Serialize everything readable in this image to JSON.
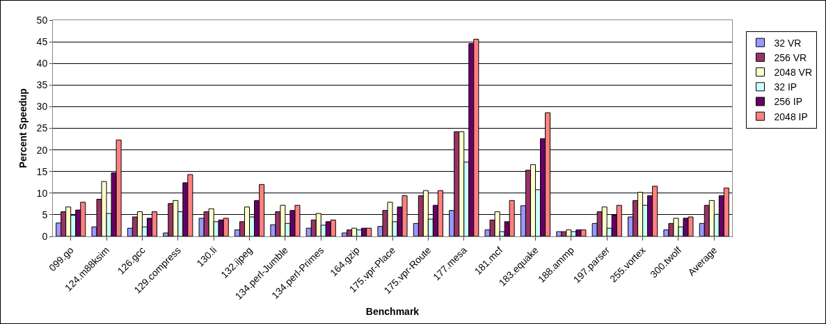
{
  "chart_data": {
    "type": "bar",
    "xlabel": "Benchmark",
    "ylabel": "Percent Speedup",
    "categories": [
      "099.go",
      "124.m88ksim",
      "126.gcc",
      "129.compress",
      "130.li",
      "132.ijpeg",
      "134.perl-Jumble",
      "134.perl-Primes",
      "164.gzip",
      "175.vpr-Place",
      "175.vpr-Route",
      "177.mesa",
      "181.mcf",
      "183.equake",
      "188.ammp",
      "197.parser",
      "255.vortex",
      "300.twolf",
      "Average"
    ],
    "series": [
      {
        "name": "32 VR",
        "color": "#9999ff",
        "values": [
          3.1,
          2.2,
          1.9,
          0.8,
          4.2,
          1.5,
          2.7,
          1.9,
          0.8,
          2.3,
          3,
          6,
          1.5,
          7.1,
          1.1,
          3,
          4.5,
          1.5,
          3
        ]
      },
      {
        "name": "256 VR",
        "color": "#993366",
        "values": [
          5.7,
          8.6,
          4.5,
          7.6,
          5.7,
          3.4,
          5.7,
          3.8,
          1.5,
          6,
          9.4,
          24.2,
          3.8,
          15.3,
          1.1,
          5.7,
          8.3,
          3,
          7.2
        ]
      },
      {
        "name": "2048 VR",
        "color": "#ffffcc",
        "values": [
          6.8,
          12.7,
          5.7,
          8.3,
          6.4,
          6.8,
          7.2,
          5.3,
          1.9,
          7.9,
          10.6,
          24.2,
          5.7,
          16.6,
          1.5,
          6.8,
          10.2,
          4.2,
          8.3
        ]
      },
      {
        "name": "32 IP",
        "color": "#ccffff",
        "values": [
          4.9,
          5.3,
          2.2,
          5.7,
          3.4,
          4.5,
          3,
          2.6,
          1.5,
          3.4,
          4,
          17.2,
          1.1,
          10.8,
          1.1,
          1.9,
          7.2,
          2.2,
          5.1
        ]
      },
      {
        "name": "256 IP",
        "color": "#660066",
        "values": [
          6.1,
          14.7,
          4.2,
          12.4,
          3.8,
          8.3,
          6,
          3.4,
          1.9,
          6.8,
          7.2,
          44.6,
          3.4,
          22.6,
          1.5,
          4.9,
          9.4,
          4.2,
          9.4
        ]
      },
      {
        "name": "2048 IP",
        "color": "#ff8080",
        "values": [
          7.9,
          22.3,
          5.7,
          14.3,
          4.2,
          12,
          7.2,
          3.8,
          1.9,
          9.4,
          10.6,
          45.6,
          8.3,
          28.6,
          1.5,
          7.2,
          11.6,
          4.5,
          11.2
        ]
      }
    ],
    "ylim": [
      0,
      50
    ],
    "yticks": [
      0,
      5,
      10,
      15,
      20,
      25,
      30,
      35,
      40,
      45,
      50
    ],
    "grid": "y",
    "legend": "right"
  }
}
